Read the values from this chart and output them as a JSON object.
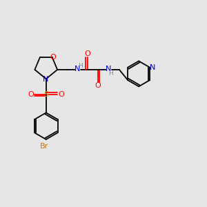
{
  "background_color": "#e6e6e6",
  "fig_size": [
    3.0,
    3.0
  ],
  "dpi": 100,
  "colors": {
    "C": "#000000",
    "N": "#0000cc",
    "O": "#ff0000",
    "S": "#ccaa00",
    "Br": "#cc7700",
    "H": "#6699aa",
    "bond": "#000000"
  }
}
